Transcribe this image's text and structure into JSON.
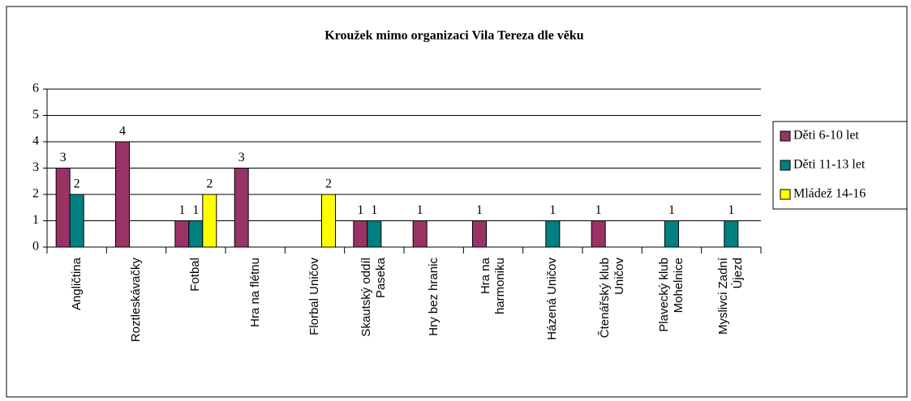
{
  "chart_data": {
    "type": "bar",
    "title": "Kroužek mimo organizaci Vila Tereza dle věku",
    "categories": [
      "Angličtina",
      "Roztleskávačky",
      "Fotbal",
      "Hra na flétnu",
      "Florbal Uničov",
      "Skautský oddíl Paseka",
      "Hry bez hranic",
      "Hra na harmoniku",
      "Házená Uničov",
      "Čtenářský klub Uničov",
      "Plavecký klub Mohelnice",
      "Myslivci Zadní Újezd"
    ],
    "series": [
      {
        "name": "Děti 6-10 let",
        "color": "#993366",
        "values": [
          3,
          4,
          1,
          3,
          null,
          1,
          1,
          1,
          null,
          1,
          null,
          null
        ]
      },
      {
        "name": "Děti 11-13 let",
        "color": "#008080",
        "values": [
          2,
          null,
          1,
          null,
          null,
          1,
          null,
          null,
          1,
          null,
          1,
          1
        ]
      },
      {
        "name": "Mládež 14-16",
        "color": "#ffff00",
        "values": [
          null,
          null,
          2,
          null,
          2,
          null,
          null,
          null,
          null,
          null,
          null,
          null
        ]
      }
    ],
    "ylim": [
      0,
      6
    ],
    "yticks": [
      0,
      1,
      2,
      3,
      4,
      5,
      6
    ],
    "grid": true,
    "legend": "right"
  }
}
